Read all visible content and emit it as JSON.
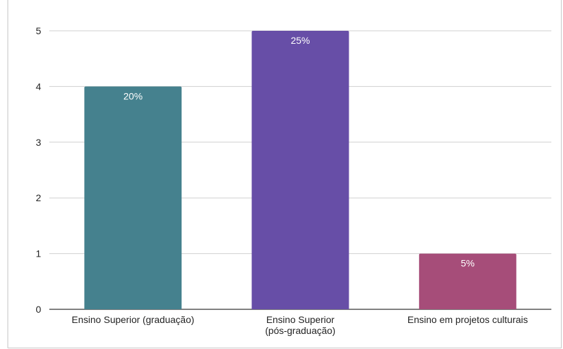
{
  "chart_data": {
    "type": "bar",
    "title": "",
    "xlabel": "",
    "ylabel": "",
    "ylim": [
      0,
      5
    ],
    "yticks": [
      "0",
      "1",
      "2",
      "3",
      "4",
      "5"
    ],
    "grid": true,
    "legend": "none",
    "categories": [
      [
        "Ensino Superior (graduação)"
      ],
      [
        "Ensino Superior",
        "(pós-graduação)"
      ],
      [
        "Ensino em projetos culturais"
      ]
    ],
    "values": [
      4,
      5,
      1
    ],
    "data_labels": [
      "20%",
      "25%",
      "5%"
    ],
    "colors": [
      "#45818e",
      "#674ea7",
      "#a64d79"
    ]
  }
}
